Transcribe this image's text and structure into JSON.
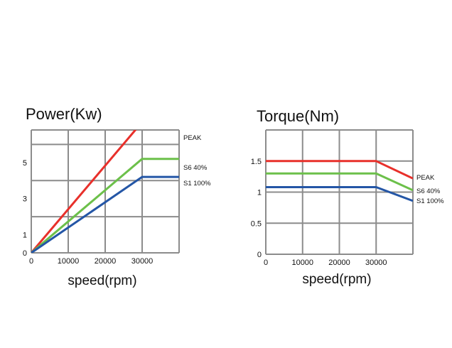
{
  "chart_data": [
    {
      "type": "line",
      "title": "Power(Kw)",
      "xlabel": "speed(rpm)",
      "ylabel": "",
      "xlim": [
        0,
        40000
      ],
      "ylim": [
        0,
        6.8
      ],
      "xticks": [
        0,
        10000,
        20000,
        30000
      ],
      "yticks": [
        0,
        1,
        3,
        5
      ],
      "x_gridlines": [
        0,
        10000,
        20000,
        30000,
        40000
      ],
      "y_gridlines": [
        0,
        2,
        4,
        6,
        6.8
      ],
      "grid": true,
      "series": [
        {
          "name": "PEAK",
          "color": "#e8302b",
          "x": [
            0,
            31500,
            40000
          ],
          "y": [
            0,
            7.6,
            7.1
          ]
        },
        {
          "name": "S6 40%",
          "color": "#6cc04a",
          "x": [
            0,
            30000,
            40000
          ],
          "y": [
            0,
            5.2,
            5.2
          ]
        },
        {
          "name": "S1 100%",
          "color": "#2456a6",
          "x": [
            0,
            30000,
            40000
          ],
          "y": [
            0,
            4.2,
            4.2
          ]
        }
      ]
    },
    {
      "type": "line",
      "title": "Torque(Nm)",
      "xlabel": "speed(rpm)",
      "ylabel": "",
      "xlim": [
        0,
        40000
      ],
      "ylim": [
        0,
        2.0
      ],
      "xticks": [
        0,
        10000,
        20000,
        30000
      ],
      "yticks": [
        0,
        0.5,
        1,
        1.5
      ],
      "x_gridlines": [
        0,
        10000,
        20000,
        30000,
        40000
      ],
      "y_gridlines": [
        0,
        0.5,
        1,
        1.5,
        2.0
      ],
      "grid": true,
      "series": [
        {
          "name": "PEAK",
          "color": "#e8302b",
          "x": [
            0,
            30000,
            40000
          ],
          "y": [
            1.5,
            1.5,
            1.22
          ]
        },
        {
          "name": "S6 40%",
          "color": "#6cc04a",
          "x": [
            0,
            30000,
            40000
          ],
          "y": [
            1.3,
            1.3,
            1.03
          ]
        },
        {
          "name": "S1 100%",
          "color": "#2456a6",
          "x": [
            0,
            30000,
            40000
          ],
          "y": [
            1.08,
            1.08,
            0.86
          ]
        }
      ]
    }
  ]
}
